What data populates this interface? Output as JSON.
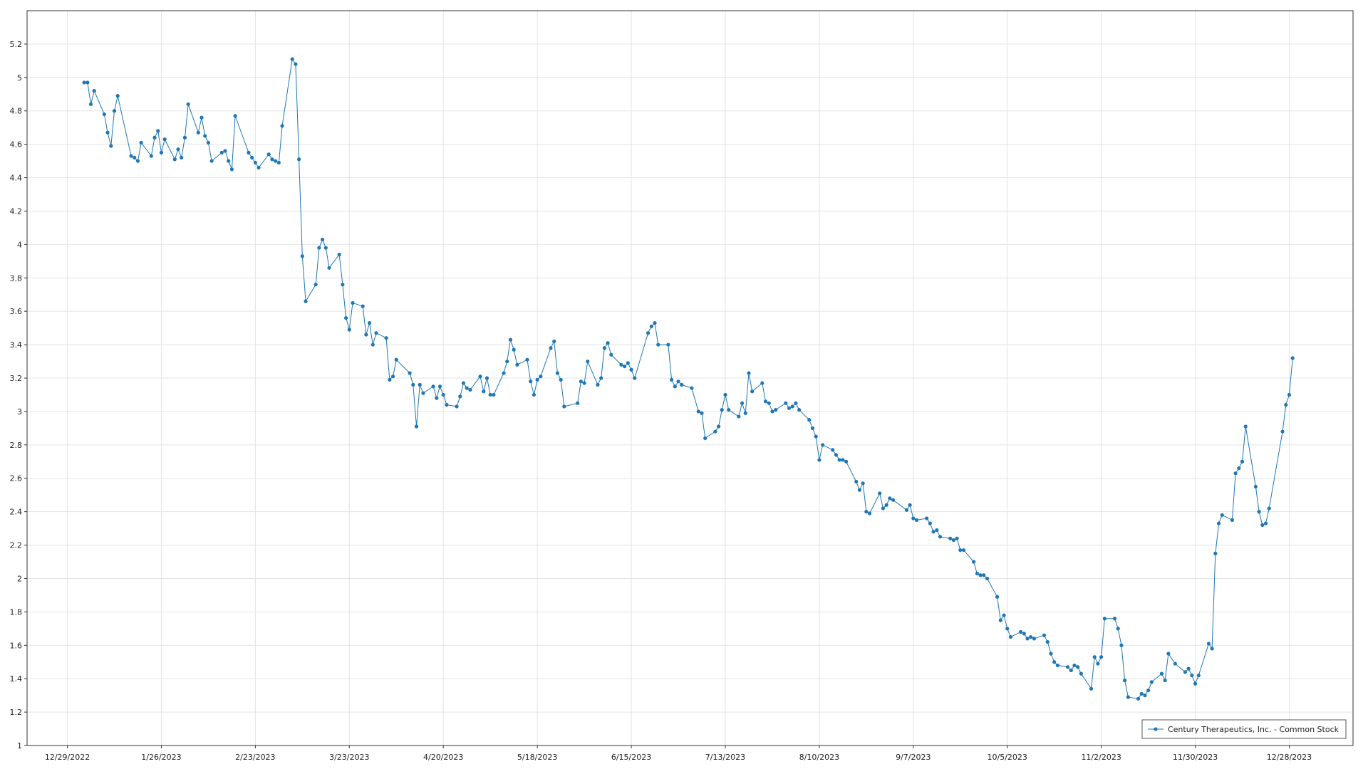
{
  "chart_data": {
    "type": "line",
    "x": [
      "1/3/2023",
      "1/4/2023",
      "1/5/2023",
      "1/6/2023",
      "1/9/2023",
      "1/10/2023",
      "1/11/2023",
      "1/12/2023",
      "1/13/2023",
      "1/17/2023",
      "1/18/2023",
      "1/19/2023",
      "1/20/2023",
      "1/23/2023",
      "1/24/2023",
      "1/25/2023",
      "1/26/2023",
      "1/27/2023",
      "1/30/2023",
      "1/31/2023",
      "2/1/2023",
      "2/2/2023",
      "2/3/2023",
      "2/6/2023",
      "2/7/2023",
      "2/8/2023",
      "2/9/2023",
      "2/10/2023",
      "2/13/2023",
      "2/14/2023",
      "2/15/2023",
      "2/16/2023",
      "2/17/2023",
      "2/21/2023",
      "2/22/2023",
      "2/23/2023",
      "2/24/2023",
      "2/27/2023",
      "2/28/2023",
      "3/1/2023",
      "3/2/2023",
      "3/3/2023",
      "3/6/2023",
      "3/7/2023",
      "3/8/2023",
      "3/9/2023",
      "3/10/2023",
      "3/13/2023",
      "3/14/2023",
      "3/15/2023",
      "3/16/2023",
      "3/17/2023",
      "3/20/2023",
      "3/21/2023",
      "3/22/2023",
      "3/23/2023",
      "3/24/2023",
      "3/27/2023",
      "3/28/2023",
      "3/29/2023",
      "3/30/2023",
      "3/31/2023",
      "4/3/2023",
      "4/4/2023",
      "4/5/2023",
      "4/6/2023",
      "4/10/2023",
      "4/11/2023",
      "4/12/2023",
      "4/13/2023",
      "4/14/2023",
      "4/17/2023",
      "4/18/2023",
      "4/19/2023",
      "4/20/2023",
      "4/21/2023",
      "4/24/2023",
      "4/25/2023",
      "4/26/2023",
      "4/27/2023",
      "4/28/2023",
      "5/1/2023",
      "5/2/2023",
      "5/3/2023",
      "5/4/2023",
      "5/5/2023",
      "5/8/2023",
      "5/9/2023",
      "5/10/2023",
      "5/11/2023",
      "5/12/2023",
      "5/15/2023",
      "5/16/2023",
      "5/17/2023",
      "5/18/2023",
      "5/19/2023",
      "5/22/2023",
      "5/23/2023",
      "5/24/2023",
      "5/25/2023",
      "5/26/2023",
      "5/30/2023",
      "5/31/2023",
      "6/1/2023",
      "6/2/2023",
      "6/5/2023",
      "6/6/2023",
      "6/7/2023",
      "6/8/2023",
      "6/9/2023",
      "6/12/2023",
      "6/13/2023",
      "6/14/2023",
      "6/15/2023",
      "6/16/2023",
      "6/20/2023",
      "6/21/2023",
      "6/22/2023",
      "6/23/2023",
      "6/26/2023",
      "6/27/2023",
      "6/28/2023",
      "6/29/2023",
      "6/30/2023",
      "7/3/2023",
      "7/5/2023",
      "7/6/2023",
      "7/7/2023",
      "7/10/2023",
      "7/11/2023",
      "7/12/2023",
      "7/13/2023",
      "7/14/2023",
      "7/17/2023",
      "7/18/2023",
      "7/19/2023",
      "7/20/2023",
      "7/21/2023",
      "7/24/2023",
      "7/25/2023",
      "7/26/2023",
      "7/27/2023",
      "7/28/2023",
      "7/31/2023",
      "8/1/2023",
      "8/2/2023",
      "8/3/2023",
      "8/4/2023",
      "8/7/2023",
      "8/8/2023",
      "8/9/2023",
      "8/10/2023",
      "8/11/2023",
      "8/14/2023",
      "8/15/2023",
      "8/16/2023",
      "8/17/2023",
      "8/18/2023",
      "8/21/2023",
      "8/22/2023",
      "8/23/2023",
      "8/24/2023",
      "8/25/2023",
      "8/28/2023",
      "8/29/2023",
      "8/30/2023",
      "8/31/2023",
      "9/1/2023",
      "9/5/2023",
      "9/6/2023",
      "9/7/2023",
      "9/8/2023",
      "9/11/2023",
      "9/12/2023",
      "9/13/2023",
      "9/14/2023",
      "9/15/2023",
      "9/18/2023",
      "9/19/2023",
      "9/20/2023",
      "9/21/2023",
      "9/22/2023",
      "9/25/2023",
      "9/26/2023",
      "9/27/2023",
      "9/28/2023",
      "9/29/2023",
      "10/2/2023",
      "10/3/2023",
      "10/4/2023",
      "10/5/2023",
      "10/6/2023",
      "10/9/2023",
      "10/10/2023",
      "10/11/2023",
      "10/12/2023",
      "10/13/2023",
      "10/16/2023",
      "10/17/2023",
      "10/18/2023",
      "10/19/2023",
      "10/20/2023",
      "10/23/2023",
      "10/24/2023",
      "10/25/2023",
      "10/26/2023",
      "10/27/2023",
      "10/30/2023",
      "10/31/2023",
      "11/1/2023",
      "11/2/2023",
      "11/3/2023",
      "11/6/2023",
      "11/7/2023",
      "11/8/2023",
      "11/9/2023",
      "11/10/2023",
      "11/13/2023",
      "11/14/2023",
      "11/15/2023",
      "11/16/2023",
      "11/17/2023",
      "11/20/2023",
      "11/21/2023",
      "11/22/2023",
      "11/24/2023",
      "11/27/2023",
      "11/28/2023",
      "11/29/2023",
      "11/30/2023",
      "12/1/2023",
      "12/4/2023",
      "12/5/2023",
      "12/6/2023",
      "12/7/2023",
      "12/8/2023",
      "12/11/2023",
      "12/12/2023",
      "12/13/2023",
      "12/14/2023",
      "12/15/2023",
      "12/18/2023",
      "12/19/2023",
      "12/20/2023",
      "12/21/2023",
      "12/22/2023",
      "12/26/2023",
      "12/27/2023",
      "12/28/2023",
      "12/29/2023"
    ],
    "series": [
      {
        "name": "Century Therapeutics, Inc. - Common Stock",
        "color": "#1f77b4",
        "values": [
          4.97,
          4.97,
          4.84,
          4.92,
          4.78,
          4.67,
          4.59,
          4.8,
          4.89,
          4.53,
          4.52,
          4.5,
          4.61,
          4.53,
          4.64,
          4.68,
          4.55,
          4.63,
          4.51,
          4.57,
          4.52,
          4.64,
          4.84,
          4.67,
          4.76,
          4.65,
          4.61,
          4.5,
          4.55,
          4.56,
          4.5,
          4.45,
          4.77,
          4.55,
          4.52,
          4.49,
          4.46,
          4.54,
          4.51,
          4.5,
          4.49,
          4.71,
          5.11,
          5.08,
          4.51,
          3.93,
          3.66,
          3.76,
          3.98,
          4.03,
          3.98,
          3.86,
          3.94,
          3.76,
          3.56,
          3.49,
          3.65,
          3.63,
          3.46,
          3.53,
          3.4,
          3.47,
          3.44,
          3.19,
          3.21,
          3.31,
          3.23,
          3.16,
          2.91,
          3.16,
          3.11,
          3.15,
          3.08,
          3.15,
          3.1,
          3.04,
          3.03,
          3.09,
          3.17,
          3.14,
          3.13,
          3.21,
          3.12,
          3.2,
          3.1,
          3.1,
          3.23,
          3.3,
          3.43,
          3.37,
          3.28,
          3.31,
          3.18,
          3.1,
          3.19,
          3.21,
          3.38,
          3.42,
          3.23,
          3.19,
          3.03,
          3.05,
          3.18,
          3.17,
          3.3,
          3.16,
          3.2,
          3.38,
          3.41,
          3.34,
          3.28,
          3.27,
          3.29,
          3.25,
          3.2,
          3.47,
          3.51,
          3.53,
          3.4,
          3.4,
          3.19,
          3.15,
          3.18,
          3.16,
          3.14,
          3.0,
          2.99,
          2.84,
          2.88,
          2.91,
          3.01,
          3.1,
          3.01,
          2.97,
          3.05,
          2.99,
          3.23,
          3.12,
          3.17,
          3.06,
          3.05,
          3.0,
          3.01,
          3.05,
          3.02,
          3.03,
          3.05,
          3.01,
          2.95,
          2.9,
          2.85,
          2.71,
          2.8,
          2.77,
          2.74,
          2.71,
          2.71,
          2.7,
          2.58,
          2.53,
          2.57,
          2.4,
          2.39,
          2.51,
          2.42,
          2.44,
          2.48,
          2.47,
          2.41,
          2.44,
          2.36,
          2.35,
          2.36,
          2.33,
          2.28,
          2.29,
          2.25,
          2.24,
          2.23,
          2.24,
          2.17,
          2.17,
          2.1,
          2.03,
          2.02,
          2.02,
          2.0,
          1.89,
          1.75,
          1.78,
          1.7,
          1.65,
          1.68,
          1.67,
          1.64,
          1.65,
          1.64,
          1.66,
          1.62,
          1.55,
          1.5,
          1.48,
          1.47,
          1.45,
          1.48,
          1.47,
          1.43,
          1.34,
          1.53,
          1.49,
          1.53,
          1.76,
          1.76,
          1.7,
          1.6,
          1.39,
          1.29,
          1.28,
          1.31,
          1.3,
          1.33,
          1.38,
          1.43,
          1.39,
          1.55,
          1.49,
          1.44,
          1.46,
          1.42,
          1.37,
          1.42,
          1.61,
          1.58,
          2.15,
          2.33,
          2.38,
          2.35,
          2.63,
          2.66,
          2.7,
          2.91,
          2.55,
          2.4,
          2.32,
          2.33,
          2.42,
          2.88,
          3.04,
          3.1,
          3.32
        ]
      }
    ],
    "xlim": [
      "12/17/2022",
      "1/16/2024"
    ],
    "xticks": [
      "12/29/2022",
      "1/26/2023",
      "2/23/2023",
      "3/23/2023",
      "4/20/2023",
      "5/18/2023",
      "6/15/2023",
      "7/13/2023",
      "8/10/2023",
      "9/7/2023",
      "10/5/2023",
      "11/2/2023",
      "11/30/2023",
      "12/28/2023"
    ],
    "ylim": [
      1,
      5.4
    ],
    "yticks": [
      1,
      1.2,
      1.4,
      1.6,
      1.8,
      2,
      2.2,
      2.4,
      2.6,
      2.8,
      3,
      3.2,
      3.4,
      3.6,
      3.8,
      4,
      4.2,
      4.4,
      4.6,
      4.8,
      5,
      5.2
    ],
    "grid": true,
    "legend": "bottom-right"
  }
}
